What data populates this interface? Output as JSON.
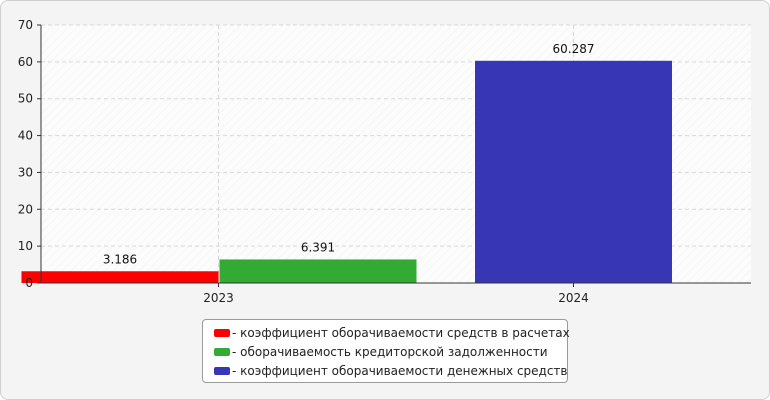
{
  "chart_data": {
    "type": "bar",
    "categories": [
      "2023",
      "2024"
    ],
    "series": [
      {
        "name": "- коэффициент оборачиваемости средств в расчетах",
        "category": "2023",
        "value": 3.186,
        "label": "3.186",
        "color": "#ff0000"
      },
      {
        "name": "- оборачиваемость кредиторской задолженности",
        "category": "2023",
        "value": 6.391,
        "label": "6.391",
        "color": "#33aa33"
      },
      {
        "name": "- коэффициент оборачиваемости денежных средств",
        "category": "2024",
        "value": 60.287,
        "label": "60.287",
        "color": "#3737b6"
      }
    ],
    "yticks": [
      0,
      10,
      20,
      30,
      40,
      50,
      60,
      70
    ],
    "ylim": [
      0,
      70
    ],
    "grid": true,
    "legend_position": "bottom-center"
  }
}
